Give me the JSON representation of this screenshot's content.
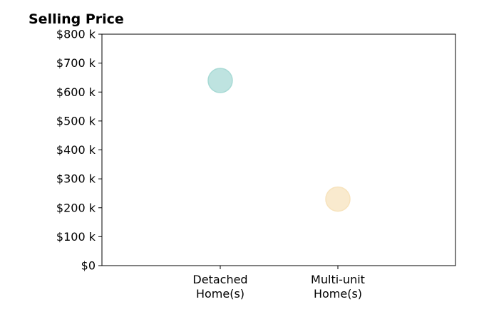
{
  "chart_data": {
    "type": "scatter",
    "title": "Selling Price",
    "xlabel": "",
    "ylabel": "",
    "categories": [
      [
        "Detached",
        "Home(s)"
      ],
      [
        "Multi-unit",
        "Home(s)"
      ]
    ],
    "points": [
      {
        "category_index": 0,
        "y": 640000,
        "color": "#a8dad5"
      },
      {
        "category_index": 1,
        "y": 230000,
        "color": "#f7e3bd"
      }
    ],
    "ylim": [
      0,
      800000
    ],
    "yticks": [
      {
        "value": 0,
        "label": "$0"
      },
      {
        "value": 100000,
        "label": "$100 k"
      },
      {
        "value": 200000,
        "label": "$200 k"
      },
      {
        "value": 300000,
        "label": "$300 k"
      },
      {
        "value": 400000,
        "label": "$400 k"
      },
      {
        "value": 500000,
        "label": "$500 k"
      },
      {
        "value": 600000,
        "label": "$600 k"
      },
      {
        "value": 700000,
        "label": "$700 k"
      },
      {
        "value": 800000,
        "label": "$800 k"
      }
    ],
    "grid": false,
    "legend": "none"
  }
}
